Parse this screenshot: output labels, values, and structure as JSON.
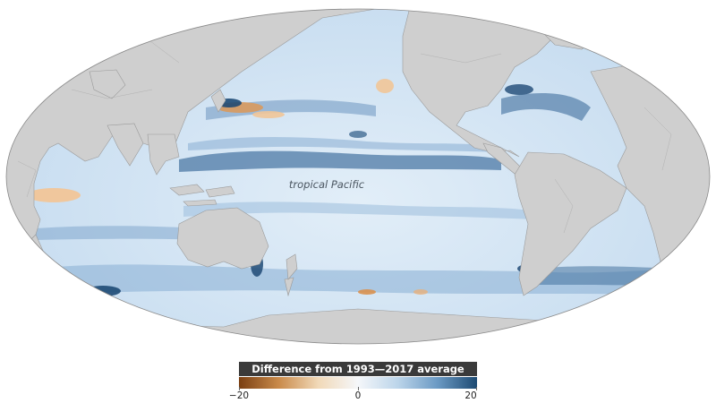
{
  "map": {
    "region_label": "tropical Pacific",
    "colors": {
      "land": "#cfcfcf",
      "ocean_base": "#cfe2f2",
      "ocean_dark": "#1f4f7a",
      "anomaly_warm": "#f0c28c",
      "anomaly_strong": "#8a4a1a",
      "outline": "#888888"
    }
  },
  "legend": {
    "title": "Difference from 1993—2017 average (cm)",
    "ticks": [
      "−20",
      "0",
      "20"
    ],
    "min": -20,
    "max": 20,
    "gradient": [
      "#7a3f12",
      "#c98a4a",
      "#f1d9b8",
      "#f5f7fa",
      "#bcd5ea",
      "#6b9ac4",
      "#1d4a72"
    ]
  }
}
